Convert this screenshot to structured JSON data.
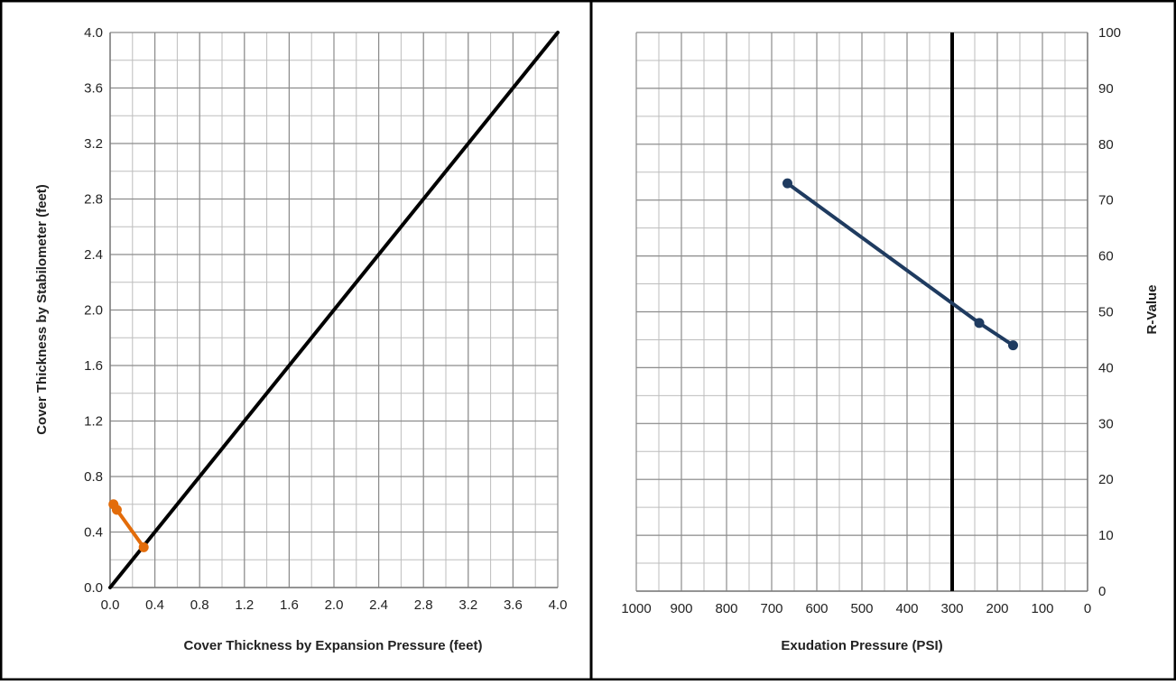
{
  "chart_data": [
    {
      "type": "line",
      "title": "",
      "xlabel": "Cover Thickness by Expansion Pressure (feet)",
      "ylabel": "Cover Thickness by Stabilometer (feet)",
      "xlim": [
        0,
        4.0
      ],
      "ylim": [
        0,
        4.0
      ],
      "x_ticks": [
        "0.0",
        "0.4",
        "0.8",
        "1.2",
        "1.6",
        "2.0",
        "2.4",
        "2.8",
        "3.2",
        "3.6",
        "4.0"
      ],
      "y_ticks": [
        "0.0",
        "0.4",
        "0.8",
        "1.2",
        "1.6",
        "2.0",
        "2.4",
        "2.8",
        "3.2",
        "3.6",
        "4.0"
      ],
      "grid": true,
      "minor_grid_step": 0.2,
      "series": [
        {
          "color": "#000000",
          "markers": false,
          "x": [
            0.0,
            4.0
          ],
          "y": [
            0.0,
            4.0
          ]
        },
        {
          "color": "#E36C0A",
          "markers": true,
          "x": [
            0.03,
            0.06,
            0.3
          ],
          "y": [
            0.6,
            0.56,
            0.29
          ]
        }
      ]
    },
    {
      "type": "line",
      "title": "",
      "xlabel": "Exudation Pressure (PSI)",
      "ylabel": "R-Value",
      "xlim": [
        1000,
        0
      ],
      "x_reversed": true,
      "ylim": [
        0,
        100
      ],
      "y_axis_side": "right",
      "x_ticks": [
        "1000",
        "900",
        "800",
        "700",
        "600",
        "500",
        "400",
        "300",
        "200",
        "100",
        "0"
      ],
      "y_ticks": [
        "0",
        "10",
        "20",
        "30",
        "40",
        "50",
        "60",
        "70",
        "80",
        "90",
        "100"
      ],
      "grid": true,
      "minor_grid_step_x": 50,
      "minor_grid_step_y": 5,
      "reference_line_x": 300,
      "series": [
        {
          "color": "#1F3B60",
          "markers": true,
          "x": [
            665,
            240,
            165
          ],
          "y": [
            73,
            48,
            44
          ]
        }
      ]
    }
  ]
}
